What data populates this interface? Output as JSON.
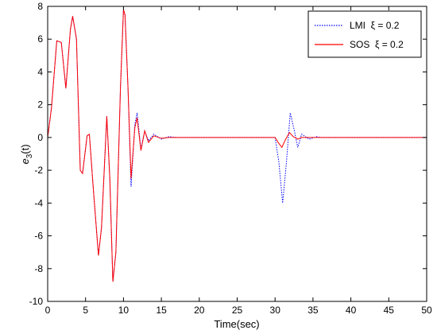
{
  "chart_data": {
    "type": "line",
    "xlabel": "Time(sec)",
    "ylabel_main": "e",
    "ylabel_sub": "3",
    "ylabel_arg": "(t)",
    "xlim": [
      0,
      50
    ],
    "ylim": [
      -10,
      8
    ],
    "xticks": [
      "0",
      "5",
      "10",
      "15",
      "20",
      "25",
      "30",
      "35",
      "40",
      "45",
      "50"
    ],
    "yticks": [
      "8",
      "6",
      "4",
      "2",
      "0",
      "-2",
      "-4",
      "-6",
      "-8",
      "-10"
    ],
    "grid": false,
    "legend_position": "top-right",
    "series": [
      {
        "name": "LMI  ξ = 0.2",
        "color": "#0000ff",
        "style": "dotted",
        "points": [
          [
            0,
            0
          ],
          [
            0.5,
            1.8
          ],
          [
            1.2,
            5.9
          ],
          [
            1.8,
            5.8
          ],
          [
            2.4,
            3.0
          ],
          [
            3.0,
            6.6
          ],
          [
            3.3,
            7.4
          ],
          [
            3.8,
            6.0
          ],
          [
            4.3,
            -2.0
          ],
          [
            4.6,
            -2.2
          ],
          [
            5.2,
            0.1
          ],
          [
            5.5,
            0.2
          ],
          [
            6.0,
            -3.0
          ],
          [
            6.7,
            -7.2
          ],
          [
            7.1,
            -5.5
          ],
          [
            7.8,
            1.3
          ],
          [
            8.2,
            -2.5
          ],
          [
            8.6,
            -8.8
          ],
          [
            9.0,
            -7.0
          ],
          [
            9.6,
            3.0
          ],
          [
            10.0,
            7.8
          ],
          [
            10.2,
            7.5
          ],
          [
            10.6,
            3.0
          ],
          [
            11.0,
            -3.0
          ],
          [
            11.5,
            0.8
          ],
          [
            11.8,
            1.5
          ],
          [
            12.3,
            -0.7
          ],
          [
            12.8,
            0.4
          ],
          [
            13.3,
            -0.2
          ],
          [
            14.0,
            0.2
          ],
          [
            15.0,
            -0.1
          ],
          [
            16.0,
            0.05
          ],
          [
            17.0,
            0
          ],
          [
            30.0,
            0
          ],
          [
            30.5,
            -1.5
          ],
          [
            31.0,
            -4.0
          ],
          [
            31.5,
            -1.5
          ],
          [
            32.0,
            1.5
          ],
          [
            32.5,
            0.5
          ],
          [
            33.0,
            -0.6
          ],
          [
            33.5,
            0.2
          ],
          [
            34.5,
            -0.1
          ],
          [
            35.5,
            0.05
          ],
          [
            36.0,
            0
          ],
          [
            50.0,
            0
          ]
        ]
      },
      {
        "name": "SOS  ξ = 0.2",
        "color": "#ff0000",
        "style": "solid",
        "points": [
          [
            0,
            0
          ],
          [
            0.5,
            1.8
          ],
          [
            1.2,
            5.9
          ],
          [
            1.8,
            5.8
          ],
          [
            2.4,
            3.0
          ],
          [
            3.0,
            6.6
          ],
          [
            3.3,
            7.4
          ],
          [
            3.8,
            6.0
          ],
          [
            4.3,
            -2.0
          ],
          [
            4.6,
            -2.2
          ],
          [
            5.2,
            0.1
          ],
          [
            5.5,
            0.2
          ],
          [
            6.0,
            -3.0
          ],
          [
            6.7,
            -7.2
          ],
          [
            7.1,
            -5.5
          ],
          [
            7.8,
            1.3
          ],
          [
            8.2,
            -2.5
          ],
          [
            8.6,
            -8.8
          ],
          [
            9.0,
            -7.0
          ],
          [
            9.6,
            3.0
          ],
          [
            10.0,
            7.8
          ],
          [
            10.2,
            7.5
          ],
          [
            10.6,
            3.0
          ],
          [
            11.0,
            -2.5
          ],
          [
            11.5,
            0.6
          ],
          [
            11.8,
            1.2
          ],
          [
            12.3,
            -0.8
          ],
          [
            12.8,
            0.4
          ],
          [
            13.3,
            -0.3
          ],
          [
            14.0,
            0.1
          ],
          [
            15.0,
            -0.05
          ],
          [
            16.0,
            0
          ],
          [
            30.0,
            0
          ],
          [
            30.4,
            -0.3
          ],
          [
            30.9,
            -0.6
          ],
          [
            31.4,
            -0.1
          ],
          [
            31.9,
            0.3
          ],
          [
            32.4,
            0.05
          ],
          [
            33.0,
            -0.1
          ],
          [
            33.5,
            0
          ],
          [
            50.0,
            0
          ]
        ]
      }
    ]
  }
}
